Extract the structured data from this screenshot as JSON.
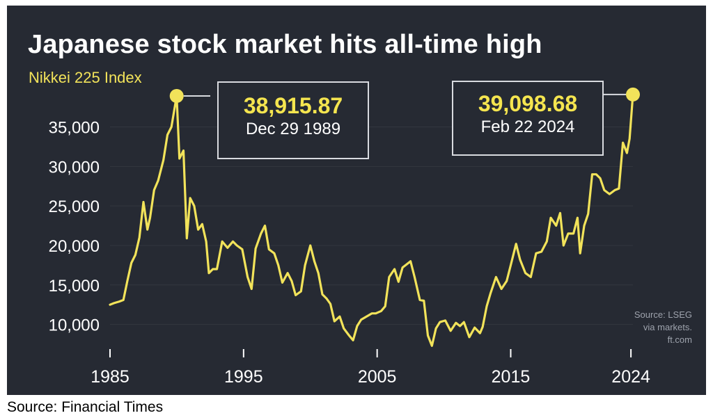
{
  "title": "Japanese stock market hits all-time high",
  "subtitle": "Nikkei 225 Index",
  "callouts": [
    {
      "value": "38,915.87",
      "date": "Dec 29 1989"
    },
    {
      "value": "39,098.68",
      "date": "Feb 22 2024"
    }
  ],
  "source_note": [
    "Source: LSEG",
    "via markets.",
    "ft.com"
  ],
  "footer_source": "Source: Financial Times",
  "colors": {
    "background": "#262a33",
    "line": "#f2e35a",
    "title": "#ffffff",
    "accent": "#f5e54f",
    "source_note": "#9ea3ad"
  },
  "chart_data": {
    "type": "line",
    "title": "Japanese stock market hits all-time high",
    "subtitle": "Nikkei 225 Index",
    "xlabel": "",
    "ylabel": "",
    "xlim": [
      1985,
      2024.15
    ],
    "ylim": [
      7500,
      38915.87
    ],
    "x_ticks": [
      1985,
      1995,
      2005,
      2015,
      2024
    ],
    "x_tick_labels": [
      "1985",
      "1995",
      "2005",
      "2015",
      "2024"
    ],
    "y_ticks": [
      10000,
      15000,
      20000,
      25000,
      30000,
      35000
    ],
    "y_tick_labels": [
      "10,000",
      "15,000",
      "20,000",
      "25,000",
      "30,000",
      "35,000"
    ],
    "grid": "horizontal",
    "series": [
      {
        "color": "#f2e35a",
        "x": [
          1985.0,
          1985.3,
          1985.7,
          1986.0,
          1986.3,
          1986.6,
          1986.9,
          1987.2,
          1987.5,
          1987.8,
          1988.0,
          1988.3,
          1988.6,
          1989.0,
          1989.3,
          1989.6,
          1989.99,
          1990.2,
          1990.5,
          1990.75,
          1991.0,
          1991.3,
          1991.6,
          1991.9,
          1992.2,
          1992.4,
          1992.7,
          1993.0,
          1993.4,
          1993.8,
          1994.2,
          1994.5,
          1994.9,
          1995.3,
          1995.6,
          1995.9,
          1996.3,
          1996.6,
          1996.9,
          1997.3,
          1997.6,
          1997.9,
          1998.3,
          1998.6,
          1998.9,
          1999.3,
          1999.6,
          2000.0,
          2000.3,
          2000.6,
          2000.9,
          2001.2,
          2001.5,
          2001.8,
          2002.2,
          2002.5,
          2002.9,
          2003.2,
          2003.5,
          2003.8,
          2004.2,
          2004.6,
          2004.9,
          2005.3,
          2005.6,
          2005.9,
          2006.3,
          2006.6,
          2006.9,
          2007.2,
          2007.5,
          2007.8,
          2008.2,
          2008.5,
          2008.8,
          2009.1,
          2009.4,
          2009.7,
          2010.1,
          2010.5,
          2010.9,
          2011.2,
          2011.5,
          2011.9,
          2012.3,
          2012.7,
          2012.9,
          2013.2,
          2013.5,
          2013.9,
          2014.3,
          2014.7,
          2015.0,
          2015.4,
          2015.7,
          2016.1,
          2016.5,
          2016.9,
          2017.3,
          2017.7,
          2018.0,
          2018.4,
          2018.7,
          2018.95,
          2019.3,
          2019.7,
          2020.0,
          2020.2,
          2020.5,
          2020.8,
          2021.1,
          2021.4,
          2021.7,
          2022.0,
          2022.4,
          2022.8,
          2023.1,
          2023.4,
          2023.7,
          2023.9,
          2024.15
        ],
        "values": [
          12500,
          12700,
          12900,
          13100,
          15500,
          17800,
          18800,
          21000,
          25500,
          22000,
          23500,
          27000,
          28200,
          30800,
          34000,
          35000,
          38915.87,
          31000,
          32000,
          20900,
          26000,
          25000,
          22000,
          22700,
          20500,
          16500,
          17000,
          17000,
          20500,
          19700,
          20500,
          20000,
          19500,
          16000,
          14500,
          19600,
          21500,
          22500,
          19500,
          19000,
          17500,
          15300,
          16500,
          15500,
          13700,
          14200,
          17500,
          20000,
          18000,
          16500,
          13800,
          13300,
          12600,
          10400,
          11000,
          9500,
          8600,
          8000,
          9800,
          10600,
          11000,
          11400,
          11400,
          11700,
          12300,
          16000,
          17000,
          15400,
          17200,
          17600,
          18000,
          16000,
          13100,
          13000,
          8600,
          7300,
          9500,
          10300,
          10500,
          9200,
          10200,
          9800,
          10300,
          8400,
          9600,
          8900,
          9700,
          12300,
          14000,
          16000,
          14500,
          15500,
          17500,
          20200,
          18200,
          16500,
          16000,
          19000,
          19200,
          20500,
          23500,
          22500,
          24100,
          20000,
          21500,
          21500,
          23500,
          19000,
          22500,
          24000,
          29000,
          29000,
          28500,
          27000,
          26500,
          27000,
          27200,
          33000,
          31700,
          33500,
          39098.68
        ]
      }
    ],
    "annotations": [
      {
        "x": 1989.99,
        "y": 38915.87,
        "label": "38,915.87",
        "sublabel": "Dec 29 1989"
      },
      {
        "x": 2024.15,
        "y": 39098.68,
        "label": "39,098.68",
        "sublabel": "Feb 22 2024"
      }
    ]
  }
}
